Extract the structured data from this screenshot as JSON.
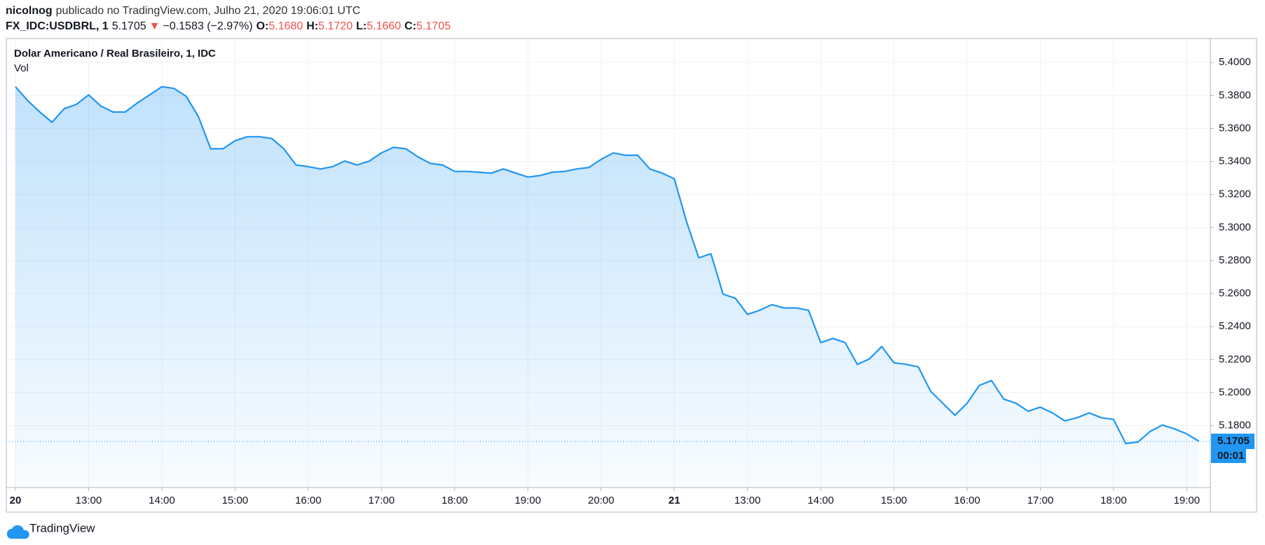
{
  "header": {
    "author": "nicolnog",
    "published": "publicado no TradingView.com, Julho 21, 2020 19:06:01 UTC",
    "symbol": "FX_IDC:USDBRL, 1",
    "price": "5.1705",
    "change_arrow": "▼",
    "change": "−0.1583 (−2.97%)",
    "open_label": "O:",
    "open": "5.1680",
    "high_label": "H:",
    "high": "5.1720",
    "low_label": "L:",
    "low": "5.1660",
    "close_label": "C:",
    "close": "5.1705"
  },
  "chart_data": {
    "type": "area",
    "title": "Dolar Americano / Real Brasileiro, 1, IDC",
    "volume_label": "Vol",
    "color": "#2196f3",
    "grid": true,
    "categories": [
      "20",
      null,
      null,
      null,
      null,
      null,
      "13:00",
      null,
      null,
      null,
      null,
      null,
      "14:00",
      null,
      null,
      null,
      null,
      null,
      "15:00",
      null,
      null,
      null,
      null,
      null,
      "16:00",
      null,
      null,
      null,
      null,
      null,
      "17:00",
      null,
      null,
      null,
      null,
      null,
      "18:00",
      null,
      null,
      null,
      null,
      null,
      "19:00",
      null,
      null,
      null,
      null,
      null,
      "20:00",
      null,
      null,
      null,
      null,
      null,
      "21",
      null,
      null,
      null,
      null,
      null,
      "13:00",
      null,
      null,
      null,
      null,
      null,
      "14:00",
      null,
      null,
      null,
      null,
      null,
      "15:00",
      null,
      null,
      null,
      null,
      null,
      "16:00",
      null,
      null,
      null,
      null,
      null,
      "17:00",
      null,
      null,
      null,
      null,
      null,
      "18:00",
      null,
      null,
      null,
      null,
      null,
      "19:00",
      null
    ],
    "values": [
      5.3853,
      5.377,
      5.37,
      5.3638,
      5.372,
      5.3746,
      5.3804,
      5.3736,
      5.37,
      5.37,
      5.3755,
      5.3804,
      5.3853,
      5.3843,
      5.3795,
      5.3672,
      5.3477,
      5.3477,
      5.3526,
      5.355,
      5.355,
      5.354,
      5.3477,
      5.3379,
      5.3369,
      5.3355,
      5.3369,
      5.3403,
      5.3379,
      5.3403,
      5.3452,
      5.3486,
      5.3477,
      5.3428,
      5.3389,
      5.3379,
      5.334,
      5.334,
      5.3335,
      5.333,
      5.3355,
      5.333,
      5.3306,
      5.3315,
      5.3335,
      5.334,
      5.3355,
      5.3364,
      5.3413,
      5.3452,
      5.3438,
      5.3438,
      5.3355,
      5.333,
      5.3296,
      5.3037,
      5.2817,
      5.2841,
      5.2596,
      5.2572,
      5.2474,
      5.2499,
      5.2533,
      5.2513,
      5.2513,
      5.2499,
      5.2303,
      5.2328,
      5.2303,
      5.2171,
      5.2205,
      5.2279,
      5.2181,
      5.2171,
      5.2156,
      5.2009,
      5.1936,
      5.1863,
      5.1936,
      5.2044,
      5.2073,
      5.1961,
      5.1936,
      5.1887,
      5.1912,
      5.1877,
      5.1829,
      5.1848,
      5.1877,
      5.1848,
      5.1838,
      5.1692,
      5.1701,
      5.1765,
      5.1804,
      5.178,
      5.175,
      5.1705
    ],
    "ylim": [
      5.1425,
      5.4145
    ],
    "yticks": [
      {
        "value": 5.18,
        "label": "5.1800"
      },
      {
        "value": 5.2,
        "label": "5.2000"
      },
      {
        "value": 5.22,
        "label": "5.2200"
      },
      {
        "value": 5.24,
        "label": "5.2400"
      },
      {
        "value": 5.26,
        "label": "5.2600"
      },
      {
        "value": 5.28,
        "label": "5.2800"
      },
      {
        "value": 5.3,
        "label": "5.3000"
      },
      {
        "value": 5.32,
        "label": "5.3200"
      },
      {
        "value": 5.34,
        "label": "5.3400"
      },
      {
        "value": 5.36,
        "label": "5.3600"
      },
      {
        "value": 5.38,
        "label": "5.3800"
      },
      {
        "value": 5.4,
        "label": "5.4000"
      }
    ],
    "price_tag": {
      "value": 5.1705,
      "label": "5.1705"
    },
    "countdown": "00:01"
  },
  "footer": {
    "brand": "TradingView"
  }
}
